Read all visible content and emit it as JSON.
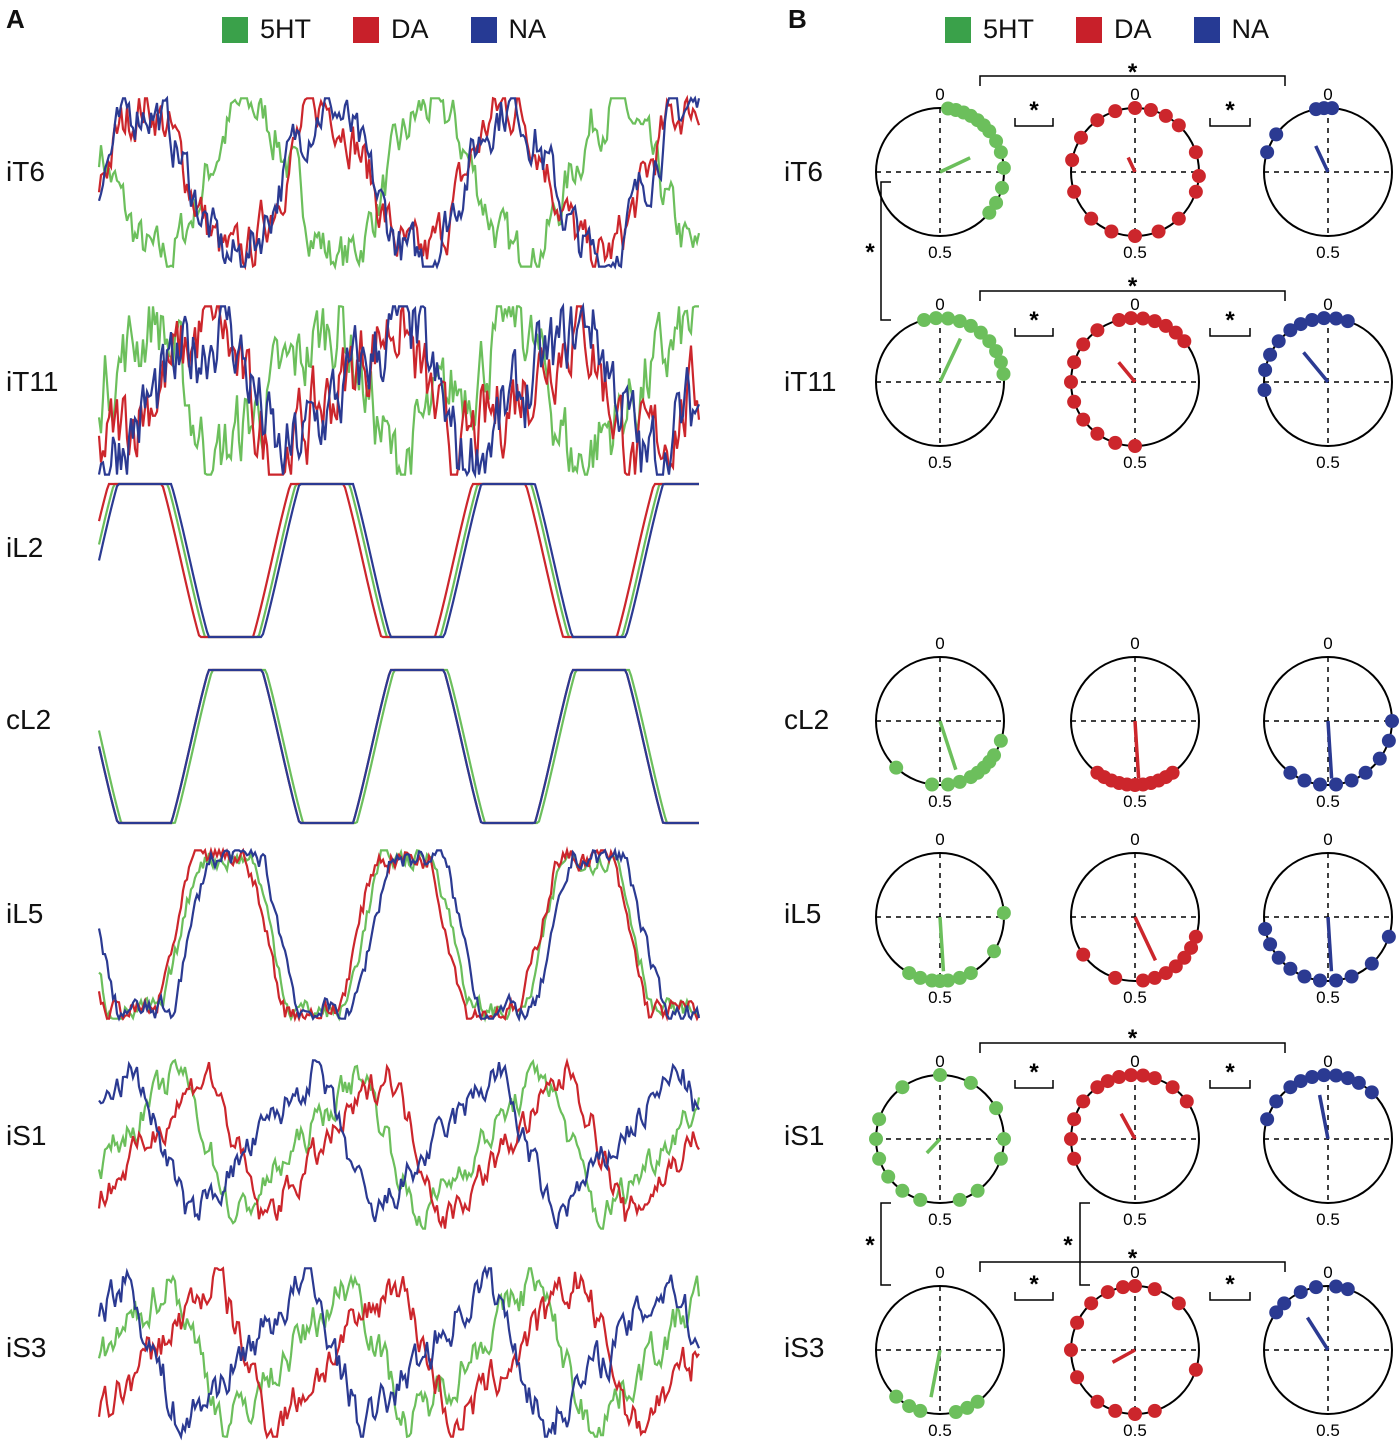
{
  "panel_a_label": "A",
  "panel_b_label": "B",
  "legend": [
    {
      "label": "5HT",
      "color": "#3aa14a"
    },
    {
      "label": "DA",
      "color": "#c8202a"
    },
    {
      "label": "NA",
      "color": "#263a94"
    }
  ],
  "colors": {
    "5HT": "#6cbf5c",
    "DA": "#cc262c",
    "NA": "#2b3a92"
  },
  "traces": [
    {
      "label": "iT6",
      "shape": "sine",
      "noise": 0.28,
      "phases": {
        "5HT": 0.42,
        "DA": 0.0,
        "NA": 0.0
      }
    },
    {
      "label": "iT11",
      "shape": "saw",
      "noise": 0.45,
      "phases": {
        "5HT": 0.38,
        "DA": 0.05,
        "NA": 0.0
      }
    },
    {
      "label": "iL2",
      "shape": "pulse",
      "noise": 0.0,
      "phases": {
        "5HT": 0.02,
        "DA": 0.05,
        "NA": 0.0
      }
    },
    {
      "label": "cL2",
      "shape": "pulse",
      "noise": 0.0,
      "phases": {
        "5HT": 0.48,
        "DA": 0.5,
        "NA": 0.5
      }
    },
    {
      "label": "iL5",
      "shape": "pulse",
      "noise": 0.12,
      "phases": {
        "5HT": 0.55,
        "DA": 0.58,
        "NA": 0.5
      }
    },
    {
      "label": "iS1",
      "shape": "saw",
      "noise": 0.18,
      "phases": {
        "5HT": 0.25,
        "DA": 0.1,
        "NA": 0.5
      }
    },
    {
      "label": "iS3",
      "shape": "saw",
      "noise": 0.22,
      "phases": {
        "5HT": 0.3,
        "DA": 0.05,
        "NA": 0.55
      }
    }
  ],
  "polar_rows": [
    {
      "label": "iT6",
      "arrows": {
        "5HT": [
          0.18,
          0.52
        ],
        "DA": [
          0.93,
          0.25
        ],
        "NA": [
          0.93,
          0.45
        ]
      },
      "dots": {
        "5HT": [
          0.02,
          0.04,
          0.06,
          0.08,
          0.1,
          0.12,
          0.14,
          0.17,
          0.2,
          0.24,
          0.29,
          0.33,
          0.36
        ],
        "DA": [
          0.0,
          0.04,
          0.08,
          0.12,
          0.2,
          0.26,
          0.3,
          0.38,
          0.44,
          0.5,
          0.56,
          0.62,
          0.7,
          0.78,
          0.84,
          0.9,
          0.95
        ],
        "NA": [
          0.97,
          0.99,
          0.01,
          0.85,
          0.8
        ]
      }
    },
    {
      "label": "iT11",
      "arrows": {
        "5HT": [
          0.07,
          0.75
        ],
        "DA": [
          0.89,
          0.4
        ],
        "NA": [
          0.89,
          0.6
        ]
      },
      "dots": {
        "5HT": [
          0.96,
          0.99,
          0.02,
          0.05,
          0.08,
          0.11,
          0.14,
          0.17,
          0.2,
          0.23
        ],
        "DA": [
          0.96,
          0.99,
          0.02,
          0.05,
          0.08,
          0.11,
          0.14,
          0.6,
          0.65,
          0.7,
          0.75,
          0.8,
          0.85,
          0.9,
          0.55,
          0.5
        ],
        "NA": [
          0.93,
          0.96,
          0.99,
          0.02,
          0.05,
          0.9,
          0.86,
          0.82,
          0.78,
          0.73
        ]
      }
    },
    {
      "label": "cL2",
      "arrows": {
        "5HT": [
          0.45,
          0.8
        ],
        "DA": [
          0.49,
          0.9
        ],
        "NA": [
          0.49,
          0.9
        ]
      },
      "dots": {
        "5HT": [
          0.3,
          0.34,
          0.38,
          0.42,
          0.45,
          0.48,
          0.52,
          0.62,
          0.4,
          0.36
        ],
        "DA": [
          0.4,
          0.42,
          0.44,
          0.46,
          0.48,
          0.5,
          0.52,
          0.54,
          0.56,
          0.58,
          0.6
        ],
        "NA": [
          0.25,
          0.3,
          0.35,
          0.4,
          0.44,
          0.48,
          0.52,
          0.56,
          0.6
        ]
      }
    },
    {
      "label": "iL5",
      "arrows": {
        "5HT": [
          0.49,
          0.85
        ],
        "DA": [
          0.43,
          0.75
        ],
        "NA": [
          0.49,
          0.85
        ]
      },
      "dots": {
        "5HT": [
          0.24,
          0.34,
          0.42,
          0.45,
          0.48,
          0.5,
          0.52,
          0.55,
          0.58
        ],
        "DA": [
          0.3,
          0.33,
          0.36,
          0.39,
          0.42,
          0.45,
          0.48,
          0.55,
          0.65
        ],
        "NA": [
          0.3,
          0.38,
          0.44,
          0.48,
          0.52,
          0.56,
          0.6,
          0.64,
          0.68,
          0.72
        ]
      }
    },
    {
      "label": "iS1",
      "arrows": {
        "5HT": [
          0.62,
          0.3
        ],
        "DA": [
          0.92,
          0.45
        ],
        "NA": [
          0.97,
          0.7
        ]
      },
      "dots": {
        "5HT": [
          0.0,
          0.08,
          0.17,
          0.25,
          0.3,
          0.4,
          0.45,
          0.55,
          0.6,
          0.65,
          0.7,
          0.75,
          0.8,
          0.9
        ],
        "DA": [
          0.7,
          0.75,
          0.8,
          0.85,
          0.9,
          0.93,
          0.96,
          0.99,
          0.02,
          0.05,
          0.1,
          0.15
        ],
        "NA": [
          0.8,
          0.85,
          0.9,
          0.93,
          0.96,
          0.99,
          0.02,
          0.05,
          0.08,
          0.12
        ]
      }
    },
    {
      "label": "iS3",
      "arrows": {
        "5HT": [
          0.53,
          0.75
        ],
        "DA": [
          0.67,
          0.4
        ],
        "NA": [
          0.91,
          0.6
        ]
      },
      "dots": {
        "5HT": [
          0.4,
          0.43,
          0.46,
          0.55,
          0.58,
          0.62
        ],
        "DA": [
          0.0,
          0.05,
          0.12,
          0.3,
          0.45,
          0.5,
          0.55,
          0.6,
          0.68,
          0.75,
          0.82,
          0.88,
          0.93,
          0.97
        ],
        "NA": [
          0.85,
          0.88,
          0.93,
          0.97,
          0.02,
          0.05
        ]
      }
    }
  ],
  "polar_axis_labels": {
    "top": "0",
    "bottom": "0.5"
  },
  "significance_marker": "*"
}
